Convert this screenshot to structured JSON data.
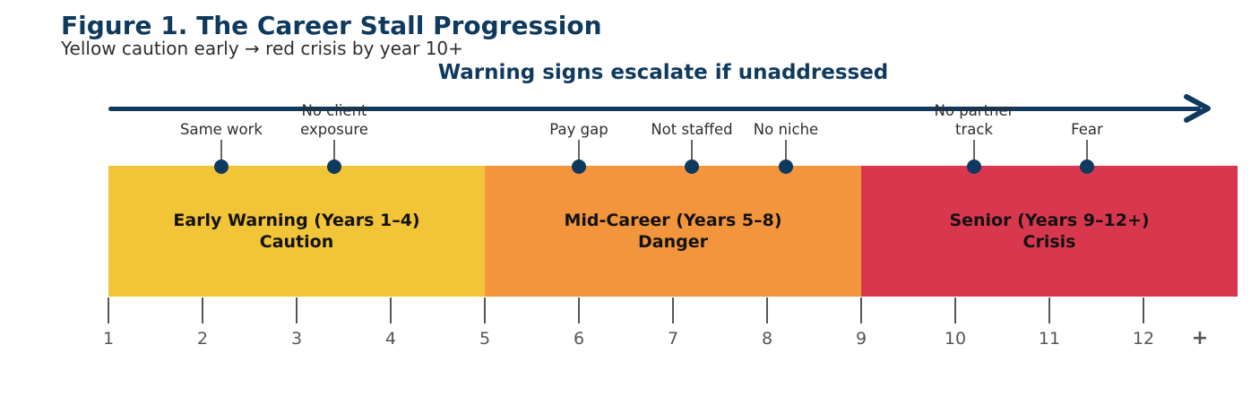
{
  "figure": {
    "title": "Figure 1. The Career Stall Progression",
    "subtitle": "Yellow caution early → red crisis by year 10+"
  },
  "colors": {
    "navy": "#0f3a5e",
    "yellow": "#f2c437",
    "orange": "#f2953c",
    "red": "#d8374e",
    "tick_gray": "#555555",
    "leader_gray": "#666666",
    "label_text": "#2e2e2e",
    "band_text": "#131313"
  },
  "chart_data": {
    "type": "bar",
    "subtype": "horizontal-timeline-bands",
    "title": "Warning signs escalate if unaddressed",
    "x_range": [
      1,
      13
    ],
    "grid": false,
    "bands": [
      {
        "name": "early-warning",
        "label": "Early Warning (Years 1–4)",
        "sublabel": "Caution",
        "start_year": 1,
        "end_year": 5,
        "color": "#f2c437"
      },
      {
        "name": "mid-career",
        "label": "Mid-Career (Years 5–8)",
        "sublabel": "Danger",
        "start_year": 5,
        "end_year": 9,
        "color": "#f2953c"
      },
      {
        "name": "senior",
        "label": "Senior (Years 9–12+)",
        "sublabel": "Crisis",
        "start_year": 9,
        "end_year": 13,
        "color": "#d8374e"
      }
    ],
    "markers": [
      {
        "label": "Same work",
        "year": 2.2
      },
      {
        "label": "No client\nexposure",
        "year": 3.4
      },
      {
        "label": "Pay gap",
        "year": 6.0
      },
      {
        "label": "Not staffed",
        "year": 7.2
      },
      {
        "label": "No niche",
        "year": 8.2
      },
      {
        "label": "No partner\ntrack",
        "year": 10.2
      },
      {
        "label": "Fear",
        "year": 11.4
      }
    ],
    "x_ticks": [
      {
        "label": "1",
        "year": 1
      },
      {
        "label": "2",
        "year": 2
      },
      {
        "label": "3",
        "year": 3
      },
      {
        "label": "4",
        "year": 4
      },
      {
        "label": "5",
        "year": 5
      },
      {
        "label": "6",
        "year": 6
      },
      {
        "label": "7",
        "year": 7
      },
      {
        "label": "8",
        "year": 8
      },
      {
        "label": "9",
        "year": 9
      },
      {
        "label": "10",
        "year": 10
      },
      {
        "label": "11",
        "year": 11
      },
      {
        "label": "12",
        "year": 12
      },
      {
        "label": "+",
        "year": 12.6,
        "tick_line": false
      }
    ]
  }
}
